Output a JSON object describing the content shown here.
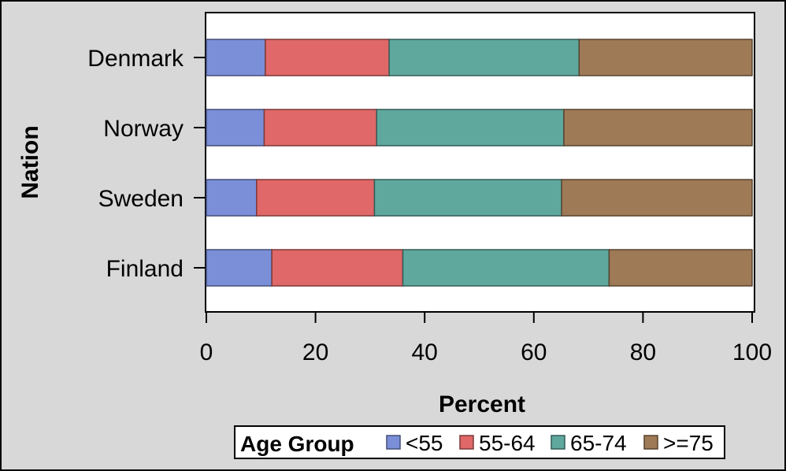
{
  "chart_data": {
    "type": "bar",
    "orientation": "horizontal",
    "stacked": true,
    "categories": [
      "Denmark",
      "Norway",
      "Sweden",
      "Finland"
    ],
    "series": [
      {
        "name": "<55",
        "color": "#7b8fd9",
        "values": [
          10.8,
          10.6,
          9.2,
          12.0
        ]
      },
      {
        "name": "55-64",
        "color": "#e06868",
        "values": [
          22.7,
          20.6,
          21.6,
          24.0
        ]
      },
      {
        "name": "65-74",
        "color": "#5fa89e",
        "values": [
          34.8,
          34.3,
          34.3,
          37.8
        ]
      },
      {
        "name": ">=75",
        "color": "#9f7a56",
        "values": [
          31.7,
          34.5,
          34.9,
          26.2
        ]
      }
    ],
    "xlabel": "Percent",
    "ylabel": "Nation",
    "xlim": [
      0,
      100
    ],
    "xticks": [
      "0",
      "20",
      "40",
      "60",
      "80",
      "100"
    ],
    "grid": false,
    "legend": {
      "title": "Age Group",
      "placement": "bottom"
    }
  }
}
